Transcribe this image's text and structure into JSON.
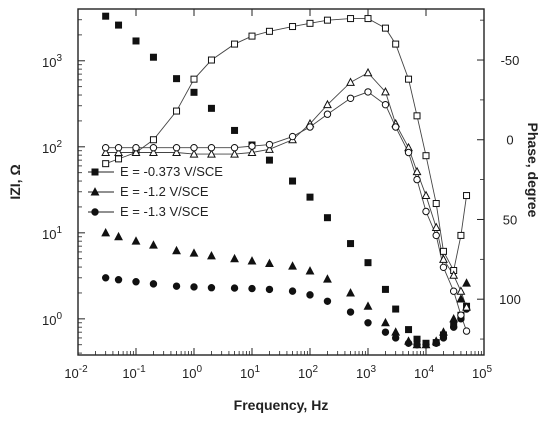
{
  "chart_data": {
    "type": "scatter",
    "xlabel": "Frequency, Hz",
    "ylabel_left": "IZI, Ω",
    "ylabel_right": "Phase, degree",
    "x_scale": "log",
    "x_range": [
      0.01,
      100000
    ],
    "y_left_scale": "log",
    "y_left_range": [
      0.38,
      4000
    ],
    "y_right_range": [
      -82,
      135
    ],
    "y_right_reversed": true,
    "x_ticks": [
      {
        "base": "10",
        "exp": "-2",
        "v": 0.01
      },
      {
        "base": "10",
        "exp": "-1",
        "v": 0.1
      },
      {
        "base": "10",
        "exp": "0",
        "v": 1
      },
      {
        "base": "10",
        "exp": "1",
        "v": 10
      },
      {
        "base": "10",
        "exp": "2",
        "v": 100
      },
      {
        "base": "10",
        "exp": "3",
        "v": 1000
      },
      {
        "base": "10",
        "exp": "4",
        "v": 10000
      },
      {
        "base": "10",
        "exp": "5",
        "v": 100000
      }
    ],
    "y_left_ticks": [
      {
        "base": "10",
        "exp": "0",
        "v": 1
      },
      {
        "base": "10",
        "exp": "1",
        "v": 10
      },
      {
        "base": "10",
        "exp": "2",
        "v": 100
      },
      {
        "base": "10",
        "exp": "3",
        "v": 1000
      }
    ],
    "y_right_ticks": [
      {
        "label": "-50",
        "v": -50
      },
      {
        "label": "0",
        "v": 0
      },
      {
        "label": "50",
        "v": 50
      },
      {
        "label": "100",
        "v": 100
      }
    ],
    "legend": {
      "placement": "center-left",
      "entries": [
        {
          "label": "E = -0.373 V/SCE",
          "marker": "square"
        },
        {
          "label": "E = -1.2 V/SCE",
          "marker": "triangle"
        },
        {
          "label": "E = -1.3 V/SCE",
          "marker": "circle"
        }
      ]
    },
    "series": [
      {
        "label": "E = -0.373 V/SCE",
        "quantity": "impedance",
        "axis": "left",
        "marker": "square",
        "filled": true,
        "points": [
          [
            0.03,
            3300
          ],
          [
            0.05,
            2600
          ],
          [
            0.1,
            1700
          ],
          [
            0.2,
            1100
          ],
          [
            0.5,
            620
          ],
          [
            1,
            430
          ],
          [
            2,
            280
          ],
          [
            5,
            155
          ],
          [
            10,
            105
          ],
          [
            20,
            70
          ],
          [
            50,
            40
          ],
          [
            100,
            26
          ],
          [
            200,
            15
          ],
          [
            500,
            7.5
          ],
          [
            1000,
            4.5
          ],
          [
            2000,
            2.2
          ],
          [
            3000,
            1.3
          ],
          [
            5000,
            0.75
          ],
          [
            7000,
            0.58
          ],
          [
            10000,
            0.52
          ],
          [
            15000,
            0.53
          ],
          [
            20000,
            0.65
          ],
          [
            30000,
            0.85
          ],
          [
            40000,
            1.1
          ],
          [
            50000,
            1.4
          ]
        ]
      },
      {
        "label": "E = -1.2 V/SCE",
        "quantity": "impedance",
        "axis": "left",
        "marker": "triangle",
        "filled": true,
        "points": [
          [
            0.03,
            10
          ],
          [
            0.05,
            9
          ],
          [
            0.1,
            8
          ],
          [
            0.2,
            7.2
          ],
          [
            0.5,
            6.2
          ],
          [
            1,
            5.8
          ],
          [
            2,
            5.4
          ],
          [
            5,
            5.0
          ],
          [
            10,
            4.7
          ],
          [
            20,
            4.4
          ],
          [
            50,
            4.1
          ],
          [
            100,
            3.6
          ],
          [
            200,
            2.9
          ],
          [
            500,
            2.0
          ],
          [
            1000,
            1.4
          ],
          [
            2000,
            0.9
          ],
          [
            3000,
            0.7
          ],
          [
            5000,
            0.55
          ],
          [
            7000,
            0.5
          ],
          [
            10000,
            0.5
          ],
          [
            15000,
            0.55
          ],
          [
            20000,
            0.7
          ],
          [
            30000,
            1.0
          ],
          [
            40000,
            1.7
          ],
          [
            50000,
            2.6
          ]
        ]
      },
      {
        "label": "E = -1.3 V/SCE",
        "quantity": "impedance",
        "axis": "left",
        "marker": "circle",
        "filled": true,
        "points": [
          [
            0.03,
            3.0
          ],
          [
            0.05,
            2.85
          ],
          [
            0.1,
            2.7
          ],
          [
            0.2,
            2.55
          ],
          [
            0.5,
            2.4
          ],
          [
            1,
            2.35
          ],
          [
            2,
            2.3
          ],
          [
            5,
            2.28
          ],
          [
            10,
            2.25
          ],
          [
            20,
            2.2
          ],
          [
            50,
            2.1
          ],
          [
            100,
            1.9
          ],
          [
            200,
            1.6
          ],
          [
            500,
            1.2
          ],
          [
            1000,
            0.9
          ],
          [
            2000,
            0.7
          ],
          [
            3000,
            0.6
          ],
          [
            5000,
            0.52
          ],
          [
            7000,
            0.5
          ],
          [
            10000,
            0.5
          ],
          [
            15000,
            0.52
          ],
          [
            20000,
            0.6
          ],
          [
            30000,
            0.8
          ],
          [
            40000,
            1.0
          ],
          [
            50000,
            1.3
          ]
        ]
      },
      {
        "label": "E = -0.373 V/SCE",
        "quantity": "phase",
        "axis": "right",
        "marker": "square",
        "filled": false,
        "points": [
          [
            0.03,
            15
          ],
          [
            0.05,
            12
          ],
          [
            0.1,
            8
          ],
          [
            0.2,
            0
          ],
          [
            0.5,
            -18
          ],
          [
            1,
            -38
          ],
          [
            2,
            -50
          ],
          [
            5,
            -60
          ],
          [
            10,
            -65
          ],
          [
            20,
            -68
          ],
          [
            50,
            -71
          ],
          [
            100,
            -73
          ],
          [
            200,
            -75
          ],
          [
            500,
            -76
          ],
          [
            1000,
            -76
          ],
          [
            2000,
            -70
          ],
          [
            3000,
            -60
          ],
          [
            5000,
            -38
          ],
          [
            7000,
            -15
          ],
          [
            10000,
            10
          ],
          [
            15000,
            40
          ],
          [
            20000,
            70
          ],
          [
            30000,
            82
          ],
          [
            40000,
            60
          ],
          [
            50000,
            35
          ]
        ]
      },
      {
        "label": "E = -1.2 V/SCE",
        "quantity": "phase",
        "axis": "right",
        "marker": "triangle",
        "filled": false,
        "points": [
          [
            0.03,
            8
          ],
          [
            0.05,
            8
          ],
          [
            0.1,
            8
          ],
          [
            0.2,
            8
          ],
          [
            0.5,
            8
          ],
          [
            1,
            9
          ],
          [
            2,
            9
          ],
          [
            5,
            9
          ],
          [
            10,
            8
          ],
          [
            20,
            6
          ],
          [
            50,
            0
          ],
          [
            100,
            -10
          ],
          [
            200,
            -22
          ],
          [
            500,
            -36
          ],
          [
            1000,
            -42
          ],
          [
            2000,
            -30
          ],
          [
            3000,
            -10
          ],
          [
            5000,
            5
          ],
          [
            7000,
            20
          ],
          [
            10000,
            35
          ],
          [
            15000,
            55
          ],
          [
            20000,
            75
          ],
          [
            30000,
            85
          ],
          [
            40000,
            95
          ],
          [
            50000,
            105
          ]
        ]
      },
      {
        "label": "E = -1.3 V/SCE",
        "quantity": "phase",
        "axis": "right",
        "marker": "circle",
        "filled": false,
        "points": [
          [
            0.03,
            5
          ],
          [
            0.05,
            5
          ],
          [
            0.1,
            5
          ],
          [
            0.2,
            5
          ],
          [
            0.5,
            5
          ],
          [
            1,
            5
          ],
          [
            2,
            5
          ],
          [
            5,
            5
          ],
          [
            10,
            4
          ],
          [
            20,
            3
          ],
          [
            50,
            -2
          ],
          [
            100,
            -8
          ],
          [
            200,
            -16
          ],
          [
            500,
            -26
          ],
          [
            1000,
            -30
          ],
          [
            2000,
            -22
          ],
          [
            3000,
            -8
          ],
          [
            5000,
            8
          ],
          [
            7000,
            25
          ],
          [
            10000,
            45
          ],
          [
            15000,
            60
          ],
          [
            20000,
            80
          ],
          [
            30000,
            95
          ],
          [
            40000,
            110
          ],
          [
            50000,
            120
          ]
        ]
      }
    ]
  }
}
